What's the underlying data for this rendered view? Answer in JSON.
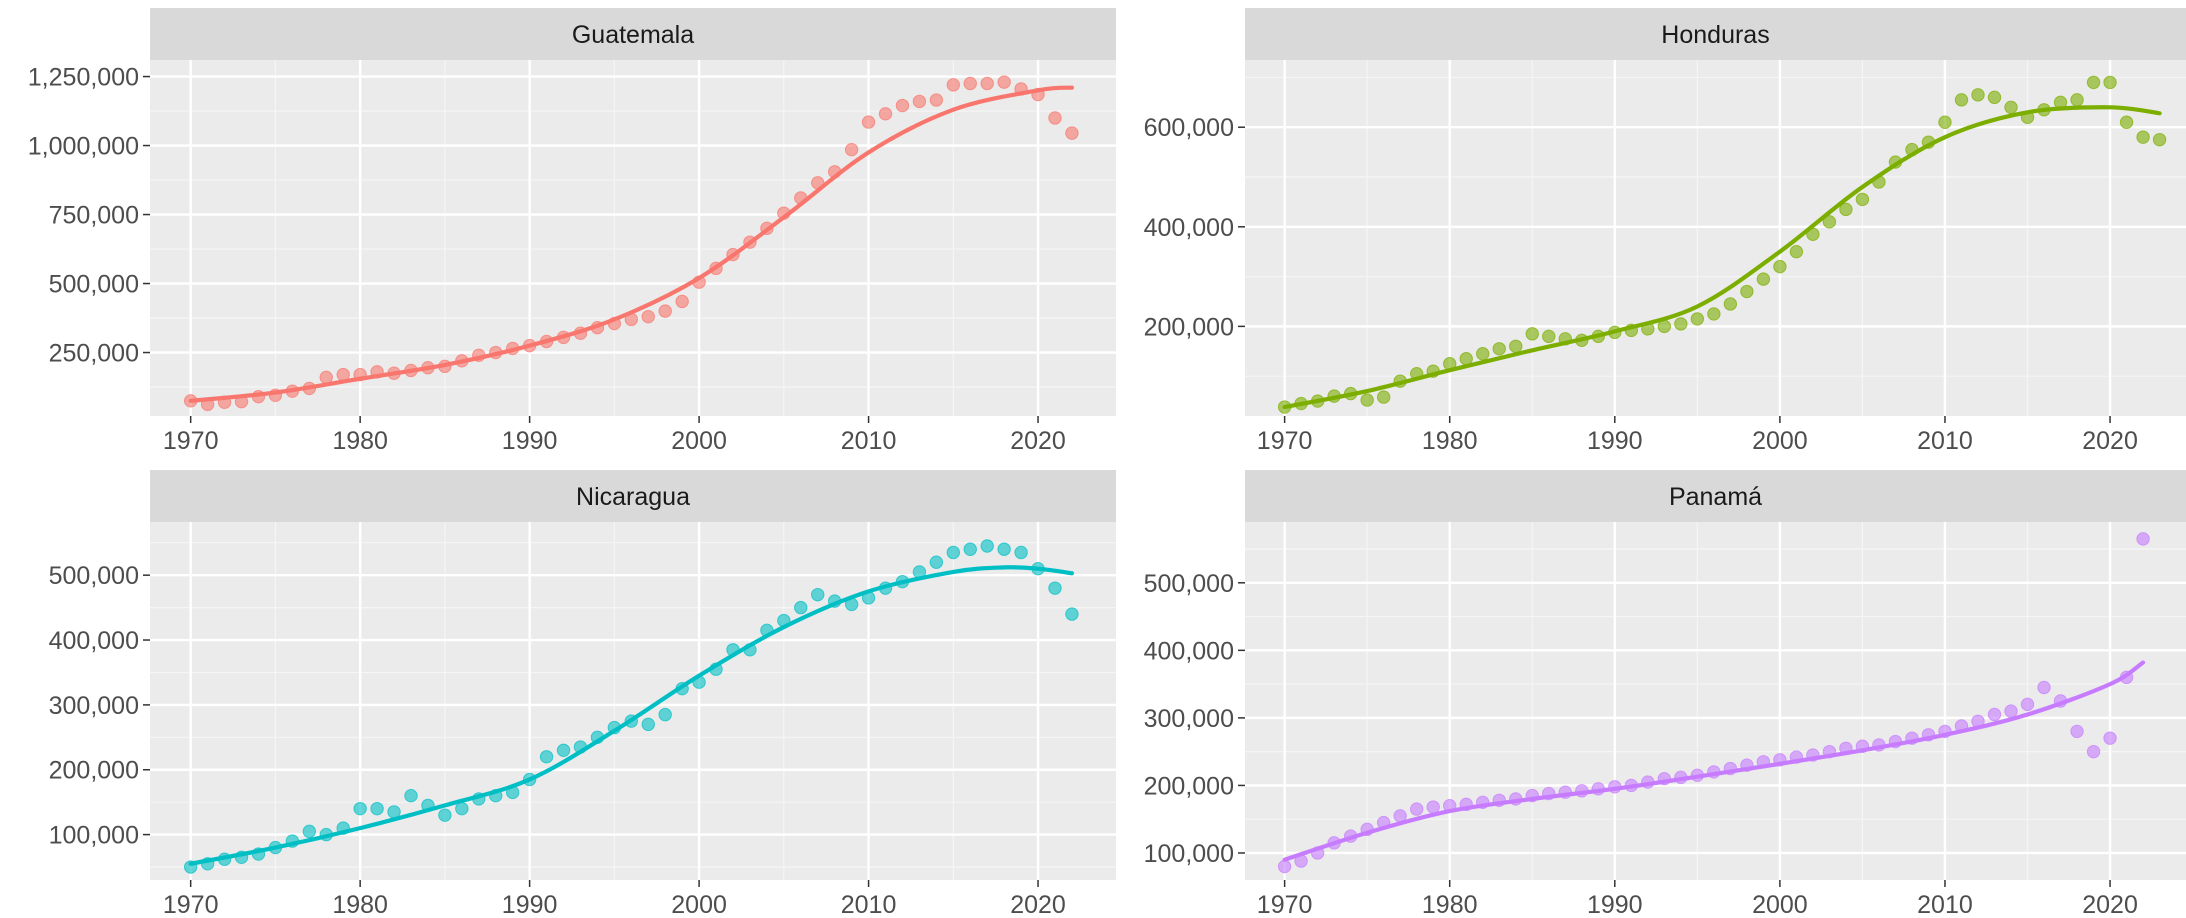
{
  "chart_data": [
    {
      "type": "scatter",
      "title": "Guatemala",
      "xlim": [
        1967.6,
        2024.6
      ],
      "ylim": [
        20000,
        1310000
      ],
      "x_ticks": [
        "1970",
        "1980",
        "1990",
        "2000",
        "2010",
        "2020"
      ],
      "y_ticks": [
        "250,000",
        "500,000",
        "750,000",
        "1,000,000",
        "1,250,000"
      ],
      "y_tick_values": [
        250000,
        500000,
        750000,
        1000000,
        1250000
      ],
      "color": "#F8766D",
      "points": [
        [
          1970,
          75000
        ],
        [
          1971,
          62000
        ],
        [
          1972,
          70000
        ],
        [
          1973,
          72000
        ],
        [
          1974,
          90000
        ],
        [
          1975,
          95000
        ],
        [
          1976,
          110000
        ],
        [
          1977,
          120000
        ],
        [
          1978,
          160000
        ],
        [
          1979,
          170000
        ],
        [
          1980,
          170000
        ],
        [
          1981,
          180000
        ],
        [
          1982,
          175000
        ],
        [
          1983,
          185000
        ],
        [
          1984,
          195000
        ],
        [
          1985,
          200000
        ],
        [
          1986,
          220000
        ],
        [
          1987,
          240000
        ],
        [
          1988,
          250000
        ],
        [
          1989,
          265000
        ],
        [
          1990,
          275000
        ],
        [
          1991,
          290000
        ],
        [
          1992,
          305000
        ],
        [
          1993,
          320000
        ],
        [
          1994,
          340000
        ],
        [
          1995,
          355000
        ],
        [
          1996,
          370000
        ],
        [
          1997,
          380000
        ],
        [
          1998,
          400000
        ],
        [
          1999,
          435000
        ],
        [
          2000,
          505000
        ],
        [
          2001,
          555000
        ],
        [
          2002,
          605000
        ],
        [
          2003,
          650000
        ],
        [
          2004,
          700000
        ],
        [
          2005,
          755000
        ],
        [
          2006,
          810000
        ],
        [
          2007,
          865000
        ],
        [
          2008,
          905000
        ],
        [
          2009,
          985000
        ],
        [
          2010,
          1085000
        ],
        [
          2011,
          1115000
        ],
        [
          2012,
          1145000
        ],
        [
          2013,
          1160000
        ],
        [
          2014,
          1165000
        ],
        [
          2015,
          1220000
        ],
        [
          2016,
          1225000
        ],
        [
          2017,
          1225000
        ],
        [
          2018,
          1230000
        ],
        [
          2019,
          1205000
        ],
        [
          2020,
          1185000
        ],
        [
          2021,
          1100000
        ],
        [
          2022,
          1045000
        ]
      ],
      "trend": [
        [
          1970,
          75000
        ],
        [
          1975,
          105000
        ],
        [
          1980,
          155000
        ],
        [
          1985,
          205000
        ],
        [
          1990,
          275000
        ],
        [
          1995,
          370000
        ],
        [
          2000,
          520000
        ],
        [
          2005,
          740000
        ],
        [
          2010,
          975000
        ],
        [
          2015,
          1130000
        ],
        [
          2020,
          1200000
        ],
        [
          2022,
          1210000
        ]
      ]
    },
    {
      "type": "scatter",
      "title": "Honduras",
      "xlim": [
        1967.6,
        2024.6
      ],
      "ylim": [
        20000,
        735000
      ],
      "x_ticks": [
        "1970",
        "1980",
        "1990",
        "2000",
        "2010",
        "2020"
      ],
      "y_ticks": [
        "200,000",
        "400,000",
        "600,000"
      ],
      "y_tick_values": [
        200000,
        400000,
        600000
      ],
      "color": "#7CAE00",
      "points": [
        [
          1970,
          38000
        ],
        [
          1971,
          45000
        ],
        [
          1972,
          50000
        ],
        [
          1973,
          60000
        ],
        [
          1974,
          65000
        ],
        [
          1975,
          52000
        ],
        [
          1976,
          58000
        ],
        [
          1977,
          90000
        ],
        [
          1978,
          105000
        ],
        [
          1979,
          110000
        ],
        [
          1980,
          125000
        ],
        [
          1981,
          135000
        ],
        [
          1982,
          145000
        ],
        [
          1983,
          155000
        ],
        [
          1984,
          160000
        ],
        [
          1985,
          185000
        ],
        [
          1986,
          180000
        ],
        [
          1987,
          175000
        ],
        [
          1988,
          172000
        ],
        [
          1989,
          180000
        ],
        [
          1990,
          188000
        ],
        [
          1991,
          192000
        ],
        [
          1992,
          195000
        ],
        [
          1993,
          200000
        ],
        [
          1994,
          205000
        ],
        [
          1995,
          215000
        ],
        [
          1996,
          225000
        ],
        [
          1997,
          245000
        ],
        [
          1998,
          270000
        ],
        [
          1999,
          295000
        ],
        [
          2000,
          320000
        ],
        [
          2001,
          350000
        ],
        [
          2002,
          385000
        ],
        [
          2003,
          410000
        ],
        [
          2004,
          435000
        ],
        [
          2005,
          455000
        ],
        [
          2006,
          490000
        ],
        [
          2007,
          530000
        ],
        [
          2008,
          555000
        ],
        [
          2009,
          570000
        ],
        [
          2010,
          610000
        ],
        [
          2011,
          655000
        ],
        [
          2012,
          665000
        ],
        [
          2013,
          660000
        ],
        [
          2014,
          640000
        ],
        [
          2015,
          620000
        ],
        [
          2016,
          635000
        ],
        [
          2017,
          650000
        ],
        [
          2018,
          655000
        ],
        [
          2019,
          690000
        ],
        [
          2020,
          690000
        ],
        [
          2021,
          610000
        ],
        [
          2022,
          580000
        ],
        [
          2023,
          575000
        ]
      ],
      "trend": [
        [
          1970,
          38000
        ],
        [
          1975,
          70000
        ],
        [
          1980,
          112000
        ],
        [
          1985,
          152000
        ],
        [
          1990,
          190000
        ],
        [
          1995,
          240000
        ],
        [
          2000,
          350000
        ],
        [
          2005,
          480000
        ],
        [
          2010,
          580000
        ],
        [
          2015,
          630000
        ],
        [
          2020,
          640000
        ],
        [
          2023,
          628000
        ]
      ]
    },
    {
      "type": "scatter",
      "title": "Nicaragua",
      "xlim": [
        1967.6,
        2024.6
      ],
      "ylim": [
        30000,
        582000
      ],
      "x_ticks": [
        "1970",
        "1980",
        "1990",
        "2000",
        "2010",
        "2020"
      ],
      "y_ticks": [
        "100,000",
        "200,000",
        "300,000",
        "400,000",
        "500,000"
      ],
      "y_tick_values": [
        100000,
        200000,
        300000,
        400000,
        500000
      ],
      "color": "#00BFC4",
      "points": [
        [
          1970,
          50000
        ],
        [
          1971,
          55000
        ],
        [
          1972,
          62000
        ],
        [
          1973,
          65000
        ],
        [
          1974,
          70000
        ],
        [
          1975,
          80000
        ],
        [
          1976,
          90000
        ],
        [
          1977,
          105000
        ],
        [
          1978,
          100000
        ],
        [
          1979,
          110000
        ],
        [
          1980,
          140000
        ],
        [
          1981,
          140000
        ],
        [
          1982,
          135000
        ],
        [
          1983,
          160000
        ],
        [
          1984,
          145000
        ],
        [
          1985,
          130000
        ],
        [
          1986,
          140000
        ],
        [
          1987,
          155000
        ],
        [
          1988,
          160000
        ],
        [
          1989,
          165000
        ],
        [
          1990,
          185000
        ],
        [
          1991,
          220000
        ],
        [
          1992,
          230000
        ],
        [
          1993,
          235000
        ],
        [
          1994,
          250000
        ],
        [
          1995,
          265000
        ],
        [
          1996,
          275000
        ],
        [
          1997,
          270000
        ],
        [
          1998,
          285000
        ],
        [
          1999,
          325000
        ],
        [
          2000,
          335000
        ],
        [
          2001,
          355000
        ],
        [
          2002,
          385000
        ],
        [
          2003,
          385000
        ],
        [
          2004,
          415000
        ],
        [
          2005,
          430000
        ],
        [
          2006,
          450000
        ],
        [
          2007,
          470000
        ],
        [
          2008,
          460000
        ],
        [
          2009,
          455000
        ],
        [
          2010,
          465000
        ],
        [
          2011,
          480000
        ],
        [
          2012,
          490000
        ],
        [
          2013,
          505000
        ],
        [
          2014,
          520000
        ],
        [
          2015,
          535000
        ],
        [
          2016,
          540000
        ],
        [
          2017,
          545000
        ],
        [
          2018,
          540000
        ],
        [
          2019,
          535000
        ],
        [
          2020,
          510000
        ],
        [
          2021,
          480000
        ],
        [
          2022,
          440000
        ]
      ],
      "trend": [
        [
          1970,
          55000
        ],
        [
          1975,
          80000
        ],
        [
          1980,
          110000
        ],
        [
          1985,
          145000
        ],
        [
          1990,
          185000
        ],
        [
          1995,
          260000
        ],
        [
          2000,
          345000
        ],
        [
          2005,
          420000
        ],
        [
          2010,
          475000
        ],
        [
          2015,
          505000
        ],
        [
          2018,
          512000
        ],
        [
          2020,
          510000
        ],
        [
          2022,
          503000
        ]
      ]
    },
    {
      "type": "scatter",
      "title": "Panamá",
      "xlim": [
        1967.6,
        2024.6
      ],
      "ylim": [
        60000,
        590000
      ],
      "x_ticks": [
        "1970",
        "1980",
        "1990",
        "2000",
        "2010",
        "2020"
      ],
      "y_ticks": [
        "100,000",
        "200,000",
        "300,000",
        "400,000",
        "500,000"
      ],
      "y_tick_values": [
        100000,
        200000,
        300000,
        400000,
        500000
      ],
      "color": "#C77CFF",
      "points": [
        [
          1970,
          80000
        ],
        [
          1971,
          88000
        ],
        [
          1972,
          100000
        ],
        [
          1973,
          115000
        ],
        [
          1974,
          125000
        ],
        [
          1975,
          135000
        ],
        [
          1976,
          145000
        ],
        [
          1977,
          155000
        ],
        [
          1978,
          165000
        ],
        [
          1979,
          168000
        ],
        [
          1980,
          170000
        ],
        [
          1981,
          172000
        ],
        [
          1982,
          175000
        ],
        [
          1983,
          178000
        ],
        [
          1984,
          180000
        ],
        [
          1985,
          185000
        ],
        [
          1986,
          188000
        ],
        [
          1987,
          190000
        ],
        [
          1988,
          192000
        ],
        [
          1989,
          195000
        ],
        [
          1990,
          198000
        ],
        [
          1991,
          200000
        ],
        [
          1992,
          205000
        ],
        [
          1993,
          210000
        ],
        [
          1994,
          212000
        ],
        [
          1995,
          215000
        ],
        [
          1996,
          220000
        ],
        [
          1997,
          225000
        ],
        [
          1998,
          230000
        ],
        [
          1999,
          235000
        ],
        [
          2000,
          238000
        ],
        [
          2001,
          242000
        ],
        [
          2002,
          245000
        ],
        [
          2003,
          250000
        ],
        [
          2004,
          255000
        ],
        [
          2005,
          258000
        ],
        [
          2006,
          260000
        ],
        [
          2007,
          265000
        ],
        [
          2008,
          270000
        ],
        [
          2009,
          275000
        ],
        [
          2010,
          280000
        ],
        [
          2011,
          288000
        ],
        [
          2012,
          295000
        ],
        [
          2013,
          305000
        ],
        [
          2014,
          310000
        ],
        [
          2015,
          320000
        ],
        [
          2016,
          345000
        ],
        [
          2017,
          325000
        ],
        [
          2018,
          280000
        ],
        [
          2019,
          250000
        ],
        [
          2020,
          270000
        ],
        [
          2021,
          360000
        ],
        [
          2022,
          565000
        ]
      ],
      "trend": [
        [
          1970,
          90000
        ],
        [
          1975,
          130000
        ],
        [
          1980,
          162000
        ],
        [
          1985,
          180000
        ],
        [
          1990,
          195000
        ],
        [
          1995,
          213000
        ],
        [
          2000,
          232000
        ],
        [
          2005,
          252000
        ],
        [
          2010,
          275000
        ],
        [
          2015,
          305000
        ],
        [
          2020,
          350000
        ],
        [
          2022,
          382000
        ]
      ]
    }
  ]
}
